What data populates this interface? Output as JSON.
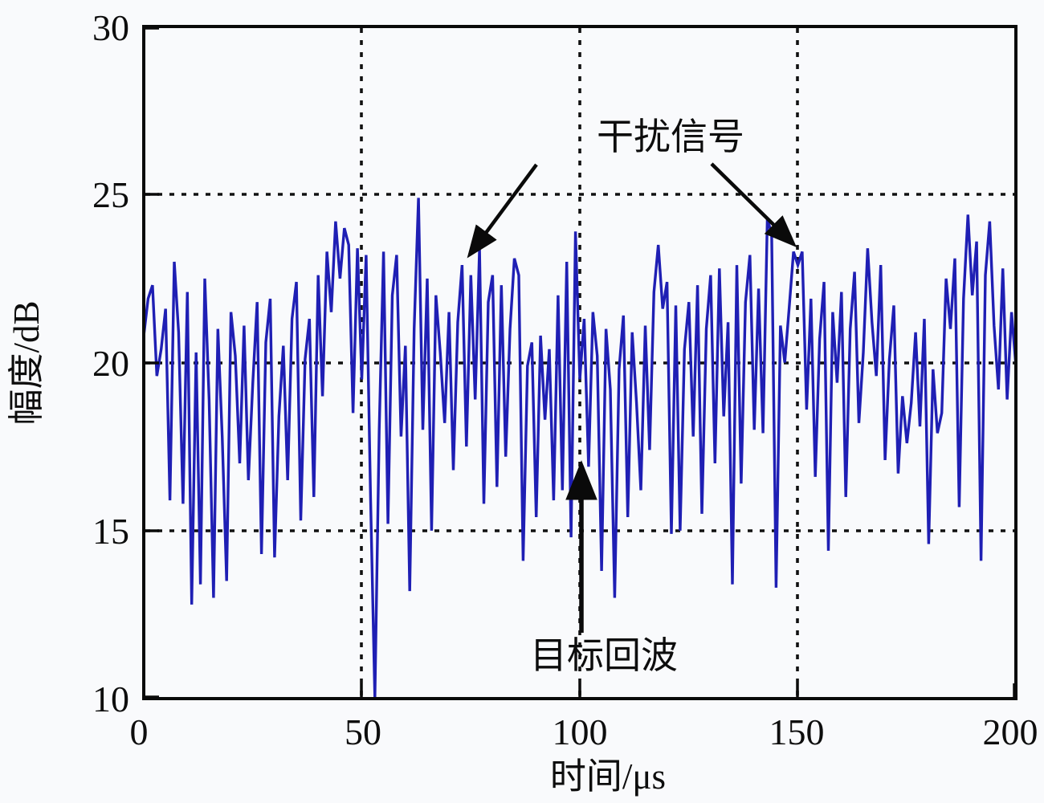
{
  "figure": {
    "title": "",
    "y_axis": {
      "label": "幅度/dB",
      "range": [
        10,
        30
      ]
    },
    "x_axis": {
      "label": "时间/μs",
      "range": [
        0,
        200
      ]
    },
    "annotations": {
      "interference_label": "干扰信号",
      "target_echo_label": "目标回波"
    },
    "colors": {
      "signal": "#1f1fb4",
      "axis": "#0a0a0a",
      "grid": "#111111",
      "background": "#f9fafc"
    }
  },
  "chart_data": {
    "type": "line",
    "title": "",
    "xlabel": "时间/μs",
    "ylabel": "幅度/dB",
    "xlim": [
      0,
      200
    ],
    "ylim": [
      10,
      30
    ],
    "x_ticks": [
      0,
      50,
      100,
      150,
      200
    ],
    "y_ticks": [
      10,
      15,
      20,
      25,
      30
    ],
    "x_gridlines": [
      50,
      100,
      150
    ],
    "y_gridlines": [
      15,
      20,
      25
    ],
    "grid_style": "dotted",
    "legend": "none",
    "line_color": "#1f1fb4",
    "annotations": [
      {
        "text": "干扰信号",
        "points_to": "interference spikes near t=73μs and t=151μs"
      },
      {
        "text": "目标回波",
        "points_to": "target echo peak near t=100μs"
      }
    ],
    "x": [
      0,
      1,
      2,
      3,
      4,
      5,
      6,
      7,
      8,
      9,
      10,
      11,
      12,
      13,
      14,
      15,
      16,
      17,
      18,
      19,
      20,
      21,
      22,
      23,
      24,
      25,
      26,
      27,
      28,
      29,
      30,
      31,
      32,
      33,
      34,
      35,
      36,
      37,
      38,
      39,
      40,
      41,
      42,
      43,
      44,
      45,
      46,
      47,
      48,
      49,
      50,
      51,
      52,
      53,
      54,
      55,
      56,
      57,
      58,
      59,
      60,
      61,
      62,
      63,
      64,
      65,
      66,
      67,
      68,
      69,
      70,
      71,
      72,
      73,
      74,
      75,
      76,
      77,
      78,
      79,
      80,
      81,
      82,
      83,
      84,
      85,
      86,
      87,
      88,
      89,
      90,
      91,
      92,
      93,
      94,
      95,
      96,
      97,
      98,
      99,
      100,
      101,
      102,
      103,
      104,
      105,
      106,
      107,
      108,
      109,
      110,
      111,
      112,
      113,
      114,
      115,
      116,
      117,
      118,
      119,
      120,
      121,
      122,
      123,
      124,
      125,
      126,
      127,
      128,
      129,
      130,
      131,
      132,
      133,
      134,
      135,
      136,
      137,
      138,
      139,
      140,
      141,
      142,
      143,
      144,
      145,
      146,
      147,
      148,
      149,
      150,
      151,
      152,
      153,
      154,
      155,
      156,
      157,
      158,
      159,
      160,
      161,
      162,
      163,
      164,
      165,
      166,
      167,
      168,
      169,
      170,
      171,
      172,
      173,
      174,
      175,
      176,
      177,
      178,
      179,
      180,
      181,
      182,
      183,
      184,
      185,
      186,
      187,
      188,
      189,
      190,
      191,
      192,
      193,
      194,
      195,
      196,
      197,
      198,
      199,
      200
    ],
    "y": [
      20.8,
      21.9,
      22.3,
      19.6,
      20.4,
      21.6,
      15.9,
      23.0,
      20.9,
      15.8,
      22.1,
      12.8,
      20.3,
      13.4,
      22.5,
      18.9,
      13.0,
      21.0,
      17.8,
      13.5,
      21.5,
      20.2,
      17.0,
      21.1,
      16.5,
      19.4,
      21.8,
      14.3,
      20.6,
      21.9,
      14.2,
      18.4,
      20.5,
      16.5,
      21.3,
      22.4,
      15.3,
      20.1,
      21.3,
      16.0,
      22.6,
      19.0,
      23.3,
      21.5,
      24.2,
      22.5,
      24.0,
      23.5,
      18.5,
      23.4,
      19.5,
      23.2,
      16.0,
      10.0,
      18.0,
      23.3,
      15.2,
      22.0,
      23.2,
      17.8,
      20.5,
      13.2,
      21.0,
      24.9,
      18.0,
      22.5,
      15.0,
      22.0,
      20.3,
      18.2,
      21.5,
      16.8,
      21.2,
      22.9,
      17.5,
      22.6,
      18.9,
      23.4,
      15.8,
      21.8,
      22.6,
      16.3,
      22.3,
      17.2,
      21.0,
      23.1,
      22.6,
      14.1,
      19.9,
      20.6,
      15.4,
      20.8,
      18.3,
      20.4,
      15.9,
      22.0,
      16.2,
      23.0,
      14.8,
      23.9,
      19.5,
      21.3,
      16.9,
      21.5,
      20.2,
      13.8,
      21.0,
      19.2,
      13.0,
      19.8,
      21.4,
      15.4,
      20.9,
      18.8,
      16.2,
      21.1,
      17.4,
      22.1,
      23.5,
      21.6,
      22.4,
      14.9,
      21.7,
      15.0,
      20.4,
      21.8,
      17.8,
      22.3,
      15.5,
      21.0,
      22.6,
      17.0,
      22.8,
      18.4,
      21.2,
      13.4,
      22.9,
      16.4,
      21.8,
      23.2,
      18.0,
      22.2,
      17.9,
      24.3,
      23.8,
      13.3,
      21.1,
      20.0,
      21.6,
      23.3,
      22.9,
      23.3,
      18.6,
      21.9,
      16.6,
      20.7,
      22.4,
      14.4,
      21.5,
      19.4,
      22.1,
      16.0,
      21.0,
      22.7,
      18.2,
      20.3,
      23.4,
      21.2,
      19.6,
      22.9,
      17.1,
      20.1,
      21.7,
      16.7,
      19.0,
      17.6,
      18.8,
      20.9,
      18.1,
      21.3,
      14.6,
      19.8,
      17.9,
      18.5,
      22.5,
      21.0,
      23.1,
      15.7,
      21.9,
      24.4,
      22.0,
      23.6,
      14.1,
      22.6,
      24.2,
      21.1,
      19.2,
      22.8,
      18.9,
      21.5,
      19.9
    ]
  }
}
